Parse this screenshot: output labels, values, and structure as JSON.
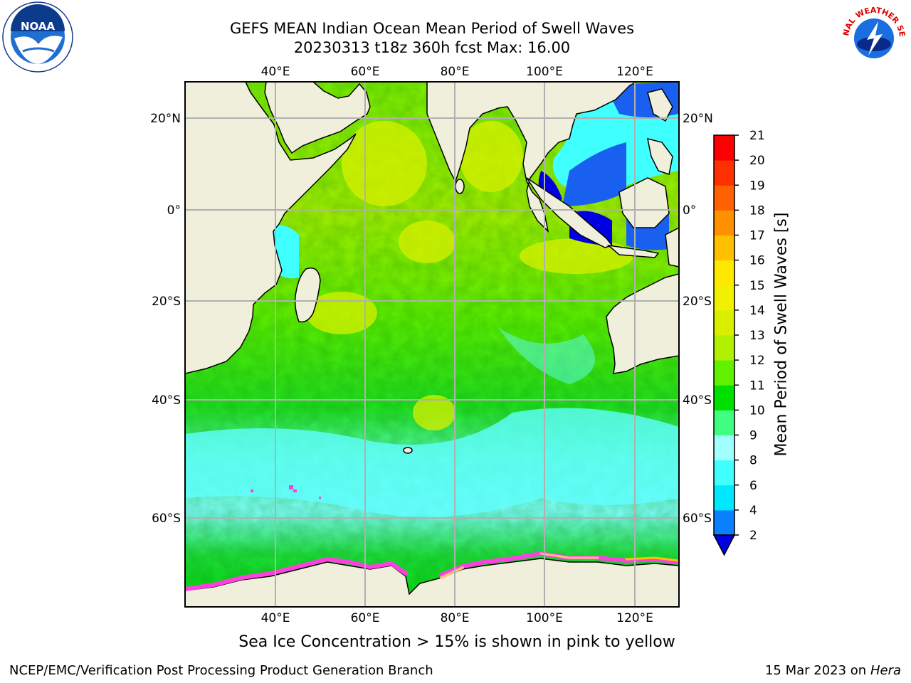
{
  "header": {
    "title_line1": "GEFS MEAN Indian Ocean Mean Period of Swell Waves",
    "title_line2": "20230313 t18z 360h fcst   Max: 16.00"
  },
  "map": {
    "lon_ticks": [
      "40°E",
      "60°E",
      "80°E",
      "100°E",
      "120°E"
    ],
    "lat_ticks": [
      "20°N",
      "0°",
      "20°S",
      "40°S",
      "60°S"
    ],
    "colors": {
      "land": "#efefdc",
      "grid": "#b0b0b0",
      "ice_white": "#ffffff",
      "ice_pink": "#ff40e0"
    }
  },
  "colorbar": {
    "label": "Mean Period of Swell Waves [s]",
    "ticks": [
      "2",
      "4",
      "6",
      "8",
      "9",
      "10",
      "11",
      "12",
      "13",
      "14",
      "15",
      "16",
      "17",
      "18",
      "19",
      "20",
      "21"
    ],
    "colors": [
      "#0000e0",
      "#0a80ff",
      "#00e8ff",
      "#40ffff",
      "#a0ffff",
      "#40ff80",
      "#00e000",
      "#60f000",
      "#b0f000",
      "#d8f000",
      "#f0f000",
      "#ffe800",
      "#ffc000",
      "#ff9000",
      "#ff6000",
      "#ff3000",
      "#ff0000"
    ]
  },
  "footer": {
    "ice_note": "Sea Ice Concentration > 15% is shown in pink to yellow",
    "producer": "NCEP/EMC/Verification Post Processing Product Generation Branch",
    "date_prefix": "15 Mar 2023 on",
    "date_machine": "Hera"
  },
  "logos": {
    "noaa_text": "NOAA",
    "nws_text": "NATIONAL WEATHER SERVICE"
  }
}
